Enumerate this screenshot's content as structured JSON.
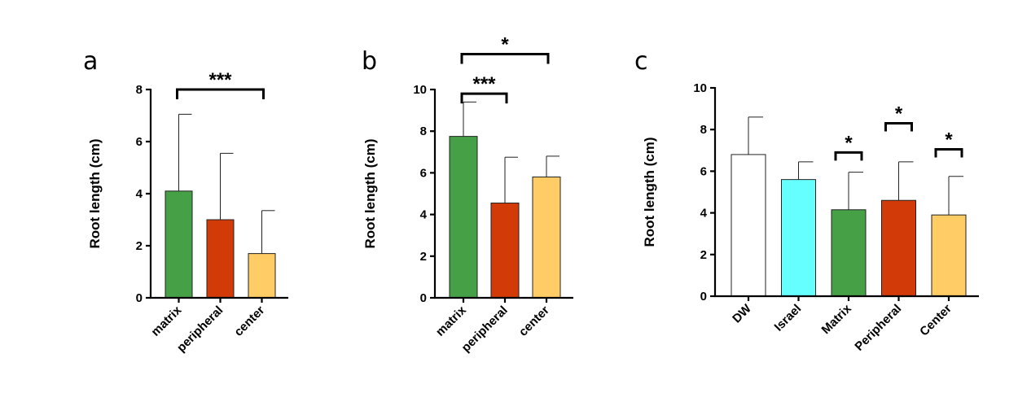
{
  "chart_data": [
    {
      "panel_label": "a",
      "type": "bar",
      "categories": [
        "matrix",
        "peripheral",
        "center"
      ],
      "values": [
        4.1,
        3.0,
        1.7
      ],
      "errors": [
        2.95,
        2.55,
        1.65
      ],
      "colors": [
        "#46a046",
        "#d23a08",
        "#ffcc66"
      ],
      "ylabel": "Root length (cm)",
      "ylim": [
        0,
        8
      ],
      "yticks": [
        0,
        2,
        4,
        6,
        8
      ],
      "significance": [
        {
          "from": 0,
          "to": 2,
          "label": "***",
          "level": 8.0
        }
      ]
    },
    {
      "panel_label": "b",
      "type": "bar",
      "categories": [
        "matrix",
        "peripheral",
        "center"
      ],
      "values": [
        7.75,
        4.55,
        5.8
      ],
      "errors": [
        1.65,
        2.2,
        1.0
      ],
      "colors": [
        "#46a046",
        "#d23a08",
        "#ffcc66"
      ],
      "ylabel": "Root length (cm)",
      "ylim": [
        0,
        10
      ],
      "yticks": [
        0,
        2,
        4,
        6,
        8,
        10
      ],
      "significance": [
        {
          "from": 0,
          "to": 1,
          "label": "***",
          "level": 9.8
        },
        {
          "from": 0,
          "to": 2,
          "label": "*",
          "level": 11.7
        }
      ]
    },
    {
      "panel_label": "c",
      "type": "bar",
      "categories": [
        "DW",
        "Israel",
        "Matrix",
        "Peripheral",
        "Center"
      ],
      "values": [
        6.8,
        5.6,
        4.15,
        4.6,
        3.9
      ],
      "errors": [
        1.8,
        0.85,
        1.8,
        1.85,
        1.85
      ],
      "colors": [
        "#ffffff",
        "#66ffff",
        "#46a046",
        "#d23a08",
        "#ffcc66"
      ],
      "ylabel": "Root length (cm)",
      "ylim": [
        0,
        10
      ],
      "yticks": [
        0,
        2,
        4,
        6,
        8,
        10
      ],
      "significance": [
        {
          "bar": 2,
          "label": "*",
          "level": 6.9
        },
        {
          "bar": 3,
          "label": "*",
          "level": 8.3
        },
        {
          "bar": 4,
          "label": "*",
          "level": 7.05
        }
      ]
    }
  ]
}
